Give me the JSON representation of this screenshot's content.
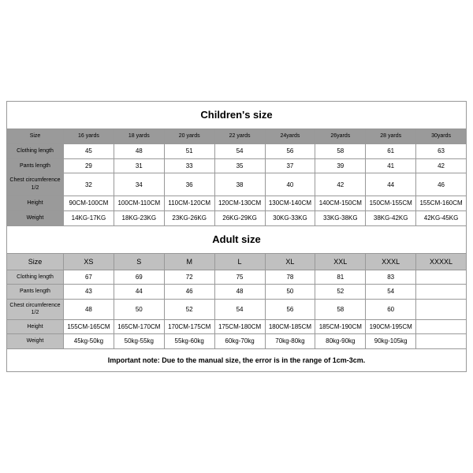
{
  "children": {
    "title": "Children's size",
    "headers": [
      "Size",
      "16 yards",
      "18 yards",
      "20 yards",
      "22 yards",
      "24yards",
      "26yards",
      "28 yards",
      "30yards"
    ],
    "rows": [
      {
        "label": "Clothing length",
        "cells": [
          "45",
          "48",
          "51",
          "54",
          "56",
          "58",
          "61",
          "63"
        ]
      },
      {
        "label": "Pants length",
        "cells": [
          "29",
          "31",
          "33",
          "35",
          "37",
          "39",
          "41",
          "42"
        ]
      },
      {
        "label": "Chest circumference 1/2",
        "cells": [
          "32",
          "34",
          "36",
          "38",
          "40",
          "42",
          "44",
          "46"
        ]
      },
      {
        "label": "Height",
        "cells": [
          "90CM-100CM",
          "100CM-110CM",
          "110CM-120CM",
          "120CM-130CM",
          "130CM-140CM",
          "140CM-150CM",
          "150CM-155CM",
          "155CM-160CM"
        ]
      },
      {
        "label": "Weight",
        "cells": [
          "14KG-17KG",
          "18KG-23KG",
          "23KG-26KG",
          "26KG-29KG",
          "30KG-33KG",
          "33KG-38KG",
          "38KG-42KG",
          "42KG-45KG"
        ]
      }
    ]
  },
  "adult": {
    "title": "Adult size",
    "headers": [
      "Size",
      "XS",
      "S",
      "M",
      "L",
      "XL",
      "XXL",
      "XXXL",
      "XXXXL"
    ],
    "rows": [
      {
        "label": "Clothing length",
        "cells": [
          "67",
          "69",
          "72",
          "75",
          "78",
          "81",
          "83",
          ""
        ]
      },
      {
        "label": "Pants length",
        "cells": [
          "43",
          "44",
          "46",
          "48",
          "50",
          "52",
          "54",
          ""
        ]
      },
      {
        "label": "Chest circumference 1/2",
        "cells": [
          "48",
          "50",
          "52",
          "54",
          "56",
          "58",
          "60",
          ""
        ]
      },
      {
        "label": "Height",
        "cells": [
          "155CM-165CM",
          "165CM-170CM",
          "170CM-175CM",
          "175CM-180CM",
          "180CM-185CM",
          "185CM-190CM",
          "190CM-195CM",
          ""
        ]
      },
      {
        "label": "Weight",
        "cells": [
          "45kg-50kg",
          "50kg-55kg",
          "55kg-60kg",
          "60kg-70kg",
          "70kg-80kg",
          "80kg-90kg",
          "90kg-105kg",
          ""
        ]
      }
    ]
  },
  "note": "Important note: Due to the manual size, the error is in the range of 1cm-3cm.",
  "style": {
    "title_fontsize": 13,
    "header_bg_children": "#9a9a9a",
    "header_bg_adult": "#c0c0c0",
    "cell_fontsize": 8,
    "header_fontsize": 7,
    "border_color": "#999999",
    "background": "#ffffff",
    "note_fontsize": 9
  }
}
